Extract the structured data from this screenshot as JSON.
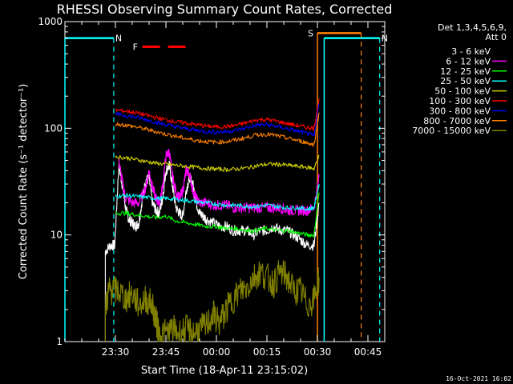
{
  "chart_data": {
    "type": "line",
    "title": "RHESSI Observing Summary Count Rates, Corrected",
    "xlabel": "Start Time (18-Apr-11 23:15:02)",
    "ylabel": "Corrected Count Rate (s⁻¹ detector⁻¹)",
    "y_scale": "log",
    "ylim": [
      1,
      1000
    ],
    "xlim_minutes_after_start": [
      0,
      95
    ],
    "x_ticks": [
      {
        "label": "23:30",
        "t": 15
      },
      {
        "label": "23:45",
        "t": 30
      },
      {
        "label": "00:00",
        "t": 45
      },
      {
        "label": "00:15",
        "t": 60
      },
      {
        "label": "00:30",
        "t": 75
      },
      {
        "label": "00:45",
        "t": 90
      }
    ],
    "y_ticks": [
      {
        "label": "1",
        "value": 1
      },
      {
        "label": "10",
        "value": 10
      },
      {
        "label": "100",
        "value": 100
      },
      {
        "label": "1000",
        "value": 1000
      }
    ],
    "legend": {
      "placement": "right",
      "header_lines": [
        "Det 1,3,4,5,6,9,",
        "Att 0"
      ]
    },
    "series": [
      {
        "name": "3 - 6 keV",
        "color": "#ffffff",
        "label_color": "#000000",
        "x": [
          12,
          13.5,
          14.8,
          16,
          17,
          18,
          19,
          20,
          21,
          22,
          23,
          24,
          25,
          26,
          27,
          28,
          29,
          30,
          31,
          32,
          33,
          34,
          35,
          36,
          37,
          38,
          39,
          40,
          41,
          42,
          44,
          46,
          48,
          50,
          52,
          54,
          56,
          58,
          60,
          62,
          64,
          66,
          68,
          70,
          72,
          74,
          75.5
        ],
        "y": [
          7,
          8,
          8,
          45,
          30,
          18,
          14,
          13,
          12,
          13,
          22,
          32,
          34,
          20,
          17,
          16,
          22,
          40,
          45,
          28,
          18,
          16,
          15,
          26,
          35,
          30,
          20,
          16,
          15,
          14,
          13,
          12,
          12,
          11,
          11,
          11,
          10,
          11,
          11,
          12,
          11,
          11,
          10,
          9,
          8,
          8,
          20
        ]
      },
      {
        "name": "6 - 12 keV",
        "color": "#ff00ff",
        "x": [
          16,
          17,
          18,
          20,
          22,
          24,
          25,
          26,
          27,
          28,
          29,
          30,
          31,
          32,
          33,
          34,
          35,
          36,
          37,
          38,
          39,
          40,
          42,
          44,
          46,
          48,
          50,
          52,
          54,
          56,
          58,
          60,
          62,
          64,
          66,
          68,
          70,
          72,
          74,
          75.5
        ],
        "y": [
          50,
          32,
          22,
          20,
          20,
          28,
          40,
          28,
          22,
          20,
          28,
          55,
          60,
          35,
          25,
          22,
          26,
          40,
          38,
          26,
          22,
          20,
          20,
          19,
          19,
          19,
          18,
          18,
          18,
          18,
          18,
          18,
          18,
          18,
          17,
          17,
          17,
          17,
          18,
          35
        ]
      },
      {
        "name": "12 - 25 keV",
        "color": "#00ff00",
        "x": [
          15,
          18,
          21,
          24,
          27,
          30,
          33,
          36,
          39,
          42,
          45,
          48,
          51,
          54,
          57,
          60,
          63,
          66,
          69,
          72,
          74,
          75.5
        ],
        "y": [
          16,
          16,
          15.5,
          15,
          14.5,
          15,
          13.5,
          13,
          12.5,
          12,
          12,
          11.5,
          11.5,
          11,
          11,
          11.5,
          11,
          11,
          10.5,
          10,
          10,
          25
        ]
      },
      {
        "name": "25 - 50 keV",
        "color": "#00ffff",
        "x": [
          15,
          18,
          21,
          24,
          27,
          30,
          33,
          36,
          39,
          42,
          45,
          48,
          51,
          54,
          57,
          60,
          63,
          66,
          69,
          72,
          74,
          75.5
        ],
        "y": [
          23,
          23.5,
          23,
          22.5,
          22,
          22,
          21.5,
          21,
          20.5,
          20,
          19.5,
          19,
          19,
          18.5,
          18.5,
          19,
          18.5,
          18,
          18,
          17.5,
          18,
          30
        ]
      },
      {
        "name": "50 - 100 keV",
        "color": "#cccc00",
        "x": [
          15,
          18,
          21,
          24,
          27,
          30,
          33,
          36,
          39,
          42,
          45,
          48,
          51,
          54,
          57,
          60,
          63,
          66,
          69,
          72,
          74,
          75.5
        ],
        "y": [
          54,
          53,
          51,
          49,
          47,
          46,
          45,
          44,
          43,
          42,
          41.5,
          41,
          41.5,
          42.5,
          44.5,
          46,
          46,
          45,
          44,
          43,
          42,
          55
        ]
      },
      {
        "name": "100 - 300 keV",
        "color": "#ff0000",
        "x": [
          15,
          18,
          21,
          24,
          27,
          30,
          33,
          36,
          39,
          42,
          45,
          48,
          51,
          54,
          57,
          60,
          63,
          66,
          69,
          72,
          74,
          75.5
        ],
        "y": [
          148,
          145,
          140,
          133,
          126,
          120,
          115,
          112,
          108,
          105,
          103,
          104,
          107,
          113,
          120,
          121,
          116,
          111,
          106,
          102,
          100,
          190
        ]
      },
      {
        "name": "300 - 800 keV",
        "color": "#0000ff",
        "x": [
          15,
          18,
          21,
          24,
          27,
          30,
          33,
          36,
          39,
          42,
          45,
          48,
          51,
          54,
          57,
          60,
          63,
          66,
          69,
          72,
          74,
          75.5
        ],
        "y": [
          135,
          132,
          127,
          121,
          114,
          108,
          103,
          99,
          96,
          93,
          92,
          93,
          96,
          101,
          107,
          108,
          104,
          99,
          94,
          89,
          85,
          170
        ]
      },
      {
        "name": "800 - 7000 keV",
        "color": "#ff8000",
        "x": [
          15,
          18,
          21,
          24,
          27,
          30,
          33,
          36,
          39,
          42,
          45,
          48,
          51,
          54,
          57,
          60,
          63,
          66,
          69,
          72,
          74,
          75.5
        ],
        "y": [
          110,
          107,
          103,
          98,
          93,
          88,
          84,
          80,
          77,
          75,
          74,
          75,
          78,
          82,
          87,
          88,
          85,
          81,
          77,
          73,
          70,
          140
        ]
      },
      {
        "name": "7000 - 15000 keV",
        "color": "#808000",
        "x": [
          12,
          13,
          14,
          16,
          18,
          20,
          22,
          24,
          26,
          27,
          28,
          30,
          32,
          34,
          36,
          38,
          40,
          42,
          44,
          46,
          48,
          50,
          52,
          54,
          56,
          58,
          60,
          62,
          64,
          66,
          68,
          70,
          72,
          74,
          75.5
        ],
        "y": [
          2,
          3,
          3,
          3,
          2.5,
          2.8,
          2.2,
          2.5,
          2.2,
          1.6,
          1.2,
          1.2,
          1.3,
          1.2,
          1.3,
          1.2,
          1.3,
          1.4,
          1.8,
          1.5,
          2,
          2.5,
          3,
          3.2,
          4,
          4.5,
          4,
          3.5,
          4.5,
          4,
          3,
          3,
          2.2,
          2.5,
          4
        ]
      }
    ],
    "markers": [
      {
        "label": "N",
        "color": "#00ffff",
        "style": "solid_then_dashed",
        "t_start": 0,
        "t_end": 14.5
      },
      {
        "label": "N",
        "color": "#00ffff",
        "style": "solid_then_dashed",
        "t_start": 77,
        "t_end": 93.5
      },
      {
        "label": "F",
        "color": "#ff0000",
        "style": "dashed",
        "t_start": 23,
        "t_end": 37
      },
      {
        "label": "S",
        "color": "#ff8000",
        "style": "solid_then_dashed",
        "t_start": 75,
        "t_end": 88
      }
    ],
    "footer_date": "16-Oct-2021 16:02"
  }
}
